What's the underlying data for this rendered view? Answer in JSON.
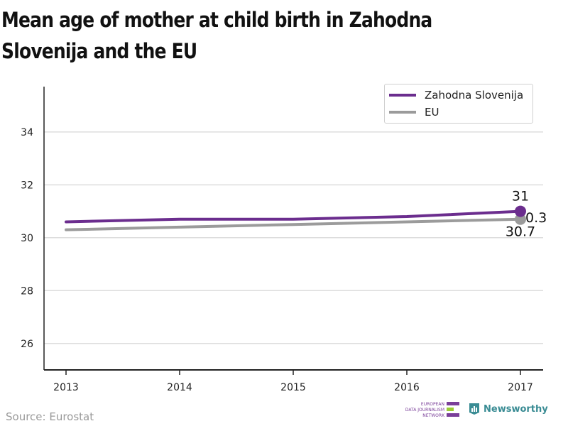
{
  "title": "Mean age of mother at child birth in Zahodna Slovenija and the EU",
  "source": "Source: Eurostat",
  "branding": {
    "edjn_lines": [
      "EUROPEAN",
      "DATA JOURNALISM",
      "NETWORK"
    ],
    "newsworthy": "Newsworthy"
  },
  "colors": {
    "zahodna": "#6b2d8e",
    "eu": "#9b9b9b",
    "grid": "#dddddd",
    "axis": "#222222"
  },
  "chart_data": {
    "type": "line",
    "title": "Mean age of mother at child birth in Zahodna Slovenija and the EU",
    "categories": [
      "2013",
      "2014",
      "2015",
      "2016",
      "2017"
    ],
    "y_ticks": [
      "26",
      "28",
      "30",
      "32",
      "34"
    ],
    "ylim": [
      25,
      35.5
    ],
    "grid": true,
    "legend_position": "top-right",
    "series": [
      {
        "name": "Zahodna Slovenija",
        "values": [
          30.6,
          30.7,
          30.7,
          30.8,
          31.0
        ],
        "end_label": "31"
      },
      {
        "name": "EU",
        "values": [
          30.3,
          30.4,
          30.5,
          30.6,
          30.7
        ],
        "end_label": "30.7"
      }
    ],
    "annotations": [
      "0.3"
    ]
  }
}
